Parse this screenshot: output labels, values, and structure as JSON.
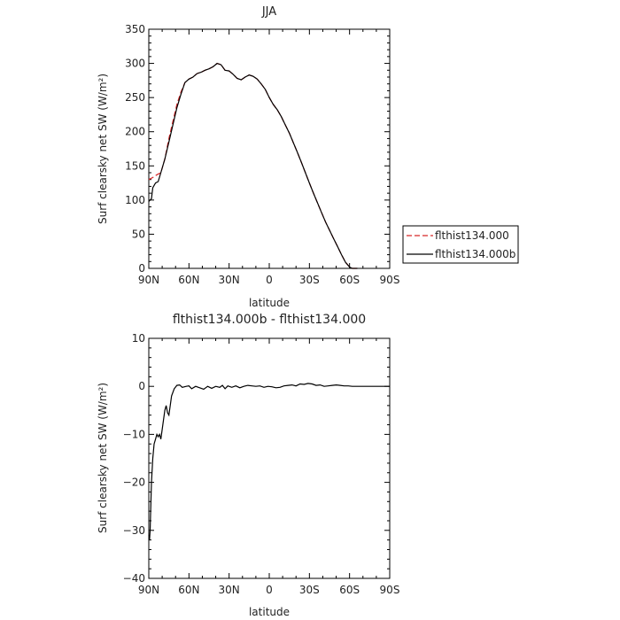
{
  "chart_data": [
    {
      "type": "line",
      "title": "JJA",
      "xlabel": "latitude",
      "ylabel": "Surf clearsky net SW (W/m²)",
      "xlim": [
        90,
        -90
      ],
      "ylim": [
        0,
        350
      ],
      "x_ticks": [
        90,
        60,
        30,
        0,
        -30,
        -60,
        -90
      ],
      "x_tick_labels": [
        "90N",
        "60N",
        "30N",
        "0",
        "30S",
        "60S",
        "90S"
      ],
      "y_ticks": [
        0,
        50,
        100,
        150,
        200,
        250,
        300,
        350
      ],
      "y_tick_labels": [
        "0",
        "50",
        "100",
        "150",
        "200",
        "250",
        "300",
        "350"
      ],
      "legend_position": "right",
      "series": [
        {
          "name": "flthist134.000",
          "color": "#d62728",
          "dash": "dashed",
          "points": [
            [
              90,
              130
            ],
            [
              87,
              133
            ],
            [
              84,
              137
            ],
            [
              81,
              140
            ],
            [
              78,
              160
            ],
            [
              75,
              190
            ],
            [
              72,
              215
            ],
            [
              69,
              240
            ],
            [
              66,
              258
            ],
            [
              63,
              272
            ],
            [
              60,
              277
            ],
            [
              57,
              280
            ],
            [
              54,
              285
            ],
            [
              51,
              287
            ],
            [
              48,
              290
            ],
            [
              45,
              292
            ],
            [
              42,
              295
            ],
            [
              39,
              300
            ],
            [
              36,
              298
            ],
            [
              33,
              290
            ],
            [
              30,
              289
            ],
            [
              27,
              284
            ],
            [
              24,
              278
            ],
            [
              21,
              276
            ],
            [
              18,
              280
            ],
            [
              15,
              283
            ],
            [
              12,
              281
            ],
            [
              9,
              277
            ],
            [
              6,
              270
            ],
            [
              3,
              262
            ],
            [
              0,
              250
            ],
            [
              -3,
              240
            ],
            [
              -6,
              232
            ],
            [
              -9,
              222
            ],
            [
              -12,
              210
            ],
            [
              -15,
              198
            ],
            [
              -18,
              184
            ],
            [
              -21,
              170
            ],
            [
              -24,
              155
            ],
            [
              -27,
              140
            ],
            [
              -30,
              125
            ],
            [
              -33,
              110
            ],
            [
              -36,
              96
            ],
            [
              -39,
              82
            ],
            [
              -42,
              68
            ],
            [
              -45,
              56
            ],
            [
              -48,
              44
            ],
            [
              -51,
              32
            ],
            [
              -54,
              20
            ],
            [
              -57,
              9
            ],
            [
              -60,
              2
            ],
            [
              -62,
              0
            ],
            [
              -66,
              0
            ]
          ]
        },
        {
          "name": "flthist134.000b",
          "color": "#000000",
          "dash": "solid",
          "points": [
            [
              90,
              98
            ],
            [
              88,
              102
            ],
            [
              87,
              118
            ],
            [
              85,
              125
            ],
            [
              83,
              127
            ],
            [
              81,
              140
            ],
            [
              78,
              160
            ],
            [
              75,
              185
            ],
            [
              72,
              210
            ],
            [
              69,
              235
            ],
            [
              66,
              255
            ],
            [
              63,
              272
            ],
            [
              60,
              277
            ],
            [
              57,
              280
            ],
            [
              54,
              285
            ],
            [
              51,
              287
            ],
            [
              48,
              290
            ],
            [
              45,
              292
            ],
            [
              42,
              295
            ],
            [
              39,
              300
            ],
            [
              36,
              298
            ],
            [
              33,
              290
            ],
            [
              30,
              289
            ],
            [
              27,
              284
            ],
            [
              24,
              278
            ],
            [
              21,
              276
            ],
            [
              18,
              280
            ],
            [
              15,
              283
            ],
            [
              12,
              281
            ],
            [
              9,
              277
            ],
            [
              6,
              270
            ],
            [
              3,
              262
            ],
            [
              0,
              250
            ],
            [
              -3,
              240
            ],
            [
              -6,
              232
            ],
            [
              -9,
              222
            ],
            [
              -12,
              210
            ],
            [
              -15,
              198
            ],
            [
              -18,
              184
            ],
            [
              -21,
              170
            ],
            [
              -24,
              155
            ],
            [
              -27,
              140
            ],
            [
              -30,
              125
            ],
            [
              -33,
              110
            ],
            [
              -36,
              96
            ],
            [
              -39,
              82
            ],
            [
              -42,
              68
            ],
            [
              -45,
              56
            ],
            [
              -48,
              44
            ],
            [
              -51,
              32
            ],
            [
              -54,
              20
            ],
            [
              -57,
              9
            ],
            [
              -60,
              2
            ],
            [
              -62,
              0
            ],
            [
              -66,
              0
            ]
          ]
        }
      ]
    },
    {
      "type": "line",
      "title": "flthist134.000b - flthist134.000",
      "xlabel": "latitude",
      "ylabel": "Surf clearsky net SW (W/m²)",
      "xlim": [
        90,
        -90
      ],
      "ylim": [
        -40,
        10
      ],
      "x_ticks": [
        90,
        60,
        30,
        0,
        -30,
        -60,
        -90
      ],
      "x_tick_labels": [
        "90N",
        "60N",
        "30N",
        "0",
        "30S",
        "60S",
        "90S"
      ],
      "y_ticks": [
        -40,
        -30,
        -20,
        -10,
        0,
        10
      ],
      "y_tick_labels": [
        "−40",
        "−30",
        "−20",
        "−10",
        "0",
        "10"
      ],
      "series": [
        {
          "color": "#000000",
          "dash": "solid",
          "points": [
            [
              90,
              -31
            ],
            [
              89.5,
              -32
            ],
            [
              89,
              -30
            ],
            [
              88,
              -20
            ],
            [
              87,
              -15
            ],
            [
              86,
              -12
            ],
            [
              85,
              -11
            ],
            [
              84,
              -10
            ],
            [
              83,
              -10.5
            ],
            [
              82,
              -10
            ],
            [
              81,
              -11
            ],
            [
              80,
              -9
            ],
            [
              79,
              -7
            ],
            [
              78,
              -5
            ],
            [
              77,
              -4
            ],
            [
              76,
              -5.5
            ],
            [
              75,
              -6
            ],
            [
              74,
              -4
            ],
            [
              73,
              -2
            ],
            [
              71,
              -0.5
            ],
            [
              69,
              0.2
            ],
            [
              67,
              0.3
            ],
            [
              65,
              -0.2
            ],
            [
              62,
              0
            ],
            [
              60,
              0.1
            ],
            [
              58,
              -0.5
            ],
            [
              55,
              0
            ],
            [
              52,
              -0.3
            ],
            [
              49,
              -0.6
            ],
            [
              46,
              0
            ],
            [
              43,
              -0.4
            ],
            [
              40,
              0
            ],
            [
              37,
              -0.2
            ],
            [
              35,
              0.2
            ],
            [
              33,
              -0.5
            ],
            [
              31,
              0.1
            ],
            [
              28,
              -0.2
            ],
            [
              25,
              0.1
            ],
            [
              22,
              -0.3
            ],
            [
              19,
              0
            ],
            [
              16,
              0.2
            ],
            [
              13,
              0.1
            ],
            [
              10,
              0
            ],
            [
              7,
              0.1
            ],
            [
              4,
              -0.2
            ],
            [
              1,
              0
            ],
            [
              -2,
              -0.1
            ],
            [
              -5,
              -0.3
            ],
            [
              -8,
              -0.2
            ],
            [
              -11,
              0.1
            ],
            [
              -14,
              0.2
            ],
            [
              -17,
              0.3
            ],
            [
              -20,
              0.1
            ],
            [
              -23,
              0.5
            ],
            [
              -26,
              0.4
            ],
            [
              -29,
              0.6
            ],
            [
              -32,
              0.5
            ],
            [
              -35,
              0.2
            ],
            [
              -38,
              0.3
            ],
            [
              -41,
              0
            ],
            [
              -44,
              0.1
            ],
            [
              -47,
              0.2
            ],
            [
              -50,
              0.3
            ],
            [
              -53,
              0.2
            ],
            [
              -56,
              0.1
            ],
            [
              -59,
              0.1
            ],
            [
              -62,
              0
            ],
            [
              -65,
              0
            ],
            [
              -70,
              0
            ],
            [
              -75,
              0
            ],
            [
              -80,
              0
            ],
            [
              -85,
              0
            ],
            [
              -90,
              0
            ]
          ]
        }
      ]
    }
  ]
}
